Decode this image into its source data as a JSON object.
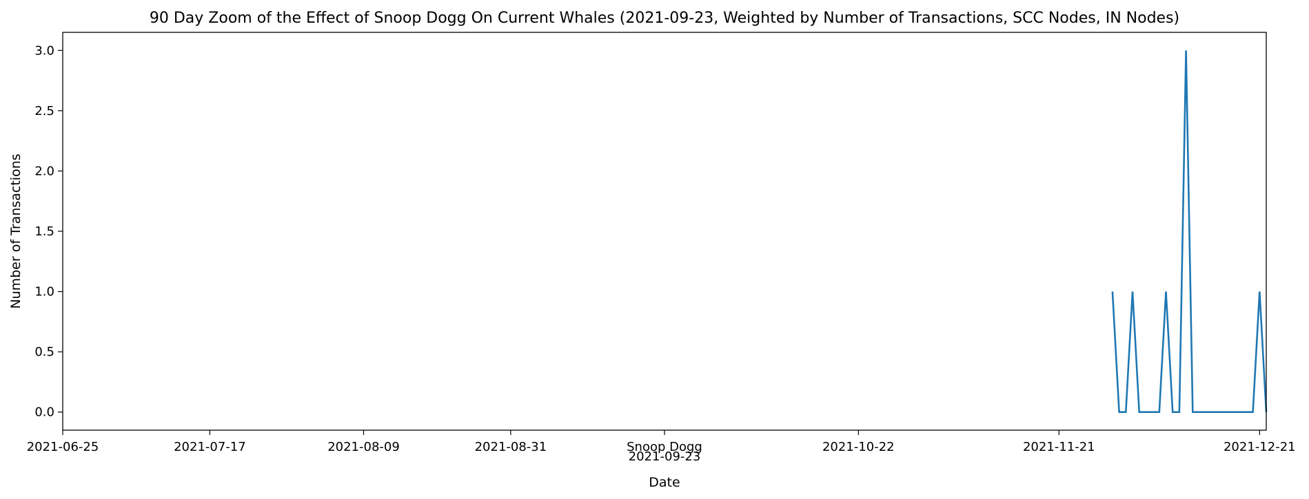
{
  "chart_data": {
    "type": "line",
    "title": "90 Day Zoom of the Effect of Snoop Dogg On Current Whales (2021-09-23, Weighted by Number of Transactions, SCC Nodes, IN Nodes)",
    "xlabel": "Date",
    "ylabel": "Number of Transactions",
    "xlim": [
      "2021-06-25",
      "2021-12-22"
    ],
    "ylim": [
      -0.15,
      3.15
    ],
    "grid": false,
    "x_ticks": [
      {
        "date": "2021-06-25",
        "label": "2021-06-25"
      },
      {
        "date": "2021-07-17",
        "label": "2021-07-17"
      },
      {
        "date": "2021-08-09",
        "label": "2021-08-09"
      },
      {
        "date": "2021-08-31",
        "label": "2021-08-31"
      },
      {
        "date": "2021-09-23",
        "label": "2021-09-23",
        "event": "Snoop Dogg"
      },
      {
        "date": "2021-10-22",
        "label": "2021-10-22"
      },
      {
        "date": "2021-11-21",
        "label": "2021-11-21"
      },
      {
        "date": "2021-12-21",
        "label": "2021-12-21"
      }
    ],
    "y_ticks": [
      {
        "value": 0.0,
        "label": "0.0"
      },
      {
        "value": 0.5,
        "label": "0.5"
      },
      {
        "value": 1.0,
        "label": "1.0"
      },
      {
        "value": 1.5,
        "label": "1.5"
      },
      {
        "value": 2.0,
        "label": "2.0"
      },
      {
        "value": 2.5,
        "label": "2.5"
      },
      {
        "value": 3.0,
        "label": "3.0"
      }
    ],
    "line_color": "#1f77b4",
    "series": [
      {
        "x": [
          "2021-11-29",
          "2021-11-30",
          "2021-12-01",
          "2021-12-02",
          "2021-12-03",
          "2021-12-04",
          "2021-12-05",
          "2021-12-06",
          "2021-12-07",
          "2021-12-08",
          "2021-12-09",
          "2021-12-10",
          "2021-12-11",
          "2021-12-12",
          "2021-12-13",
          "2021-12-14",
          "2021-12-15",
          "2021-12-16",
          "2021-12-17",
          "2021-12-18",
          "2021-12-19",
          "2021-12-20",
          "2021-12-21",
          "2021-12-22"
        ],
        "y": [
          1,
          0,
          0,
          1,
          0,
          0,
          0,
          0,
          1,
          0,
          0,
          3,
          0,
          0,
          0,
          0,
          0,
          0,
          0,
          0,
          0,
          0,
          1,
          0
        ]
      }
    ]
  }
}
